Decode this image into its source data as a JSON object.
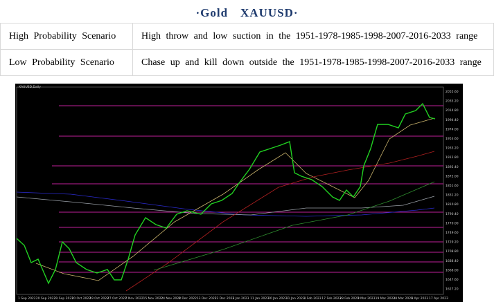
{
  "header": {
    "title": "·Gold　XAUUSD·"
  },
  "table": {
    "rows": [
      [
        "High Probability Scenario",
        "High throw and low suction in the 1951-1978-1985-1998-2007-2016-2033 range"
      ],
      [
        "Low Probability Scenario",
        "Chase up and kill down outside the 1951-1978-1985-1998-2007-2016-2033 range"
      ]
    ]
  },
  "chart_image": {
    "header": "XAUUSD,Daily",
    "y_labels": [
      "2055.60",
      "2035.20",
      "2014.80",
      "1994.40",
      "1974.00",
      "1953.60",
      "1933.20",
      "1912.80",
      "1892.40",
      "1872.00",
      "1851.60",
      "1831.20",
      "1810.80",
      "1790.40",
      "1770.00",
      "1749.60",
      "1729.20",
      "1708.80",
      "1688.40",
      "1668.00",
      "1647.60",
      "1627.20"
    ],
    "x_labels": [
      "1 Sep 2022",
      "20 Sep 2022",
      "29 Sep 2022",
      "10 Oct 2022",
      "19 Oct 2022",
      "27 Oct 2022",
      "7 Nov 2022",
      "15 Nov 2022",
      "24 Nov 2022",
      "4 Dec 2022",
      "13 Dec 2022",
      "22 Dec 2022",
      "3 Jan 2023",
      "11 Jan 2023",
      "20 Jan 2023",
      "31 Jan 2023",
      "8 Feb 2023",
      "17 Feb 2023",
      "28 Feb 2023",
      "9 Mar 2023",
      "19 Mar 2023",
      "28 Mar 2023",
      "6 Apr 2023",
      "17 Apr 2023"
    ]
  }
}
